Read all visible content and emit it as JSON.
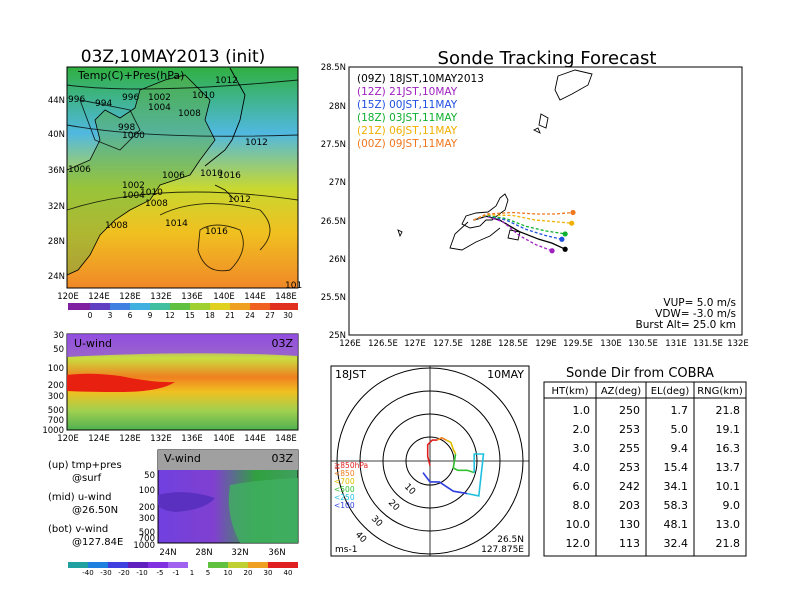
{
  "map_panel": {
    "title": "03Z,10MAY2013 (init)",
    "label": "Temp(C)+Pres(hPa)",
    "lat_labels": [
      "44N",
      "40N",
      "36N",
      "32N",
      "28N",
      "24N"
    ],
    "lon_labels": [
      "120E",
      "124E",
      "128E",
      "132E",
      "136E",
      "140E",
      "144E",
      "148E"
    ],
    "pressure_labels": [
      "996",
      "994",
      "996",
      "1002",
      "1012",
      "1004",
      "1008",
      "1010",
      "998",
      "1000",
      "1012",
      "1006",
      "1002",
      "1004",
      "1006",
      "1010",
      "1008",
      "1010",
      "1012",
      "1008",
      "1014",
      "1016",
      "1016",
      "101"
    ],
    "colorbar": [
      "0",
      "3",
      "6",
      "9",
      "12",
      "15",
      "18",
      "21",
      "24",
      "27",
      "30"
    ]
  },
  "u_panel": {
    "label": "U-wind",
    "time": "03Z",
    "levels": [
      "30",
      "50",
      "100",
      "200",
      "300",
      "500",
      "700",
      "1000"
    ],
    "lon_labels": [
      "120E",
      "124E",
      "128E",
      "132E",
      "136E",
      "140E",
      "144E",
      "148E"
    ]
  },
  "v_panel": {
    "label": "V-wind",
    "time": "03Z",
    "levels": [
      "50",
      "100",
      "200",
      "300",
      "500",
      "700",
      "1000"
    ],
    "lat_labels": [
      "24N",
      "28N",
      "32N",
      "36N"
    ],
    "colorbar": [
      "-40",
      "-30",
      "-20",
      "-10",
      "-5",
      "-1",
      "1",
      "5",
      "10",
      "20",
      "30",
      "40"
    ]
  },
  "legend_notes": {
    "up": "(up) tmp+pres",
    "up2": "@surf",
    "mid": "(mid) u-wind",
    "mid2": "@26.50N",
    "bot": "(bot) v-wind",
    "bot2": "@127.84E"
  },
  "tracking": {
    "title": "Sonde Tracking Forecast",
    "lat_labels": [
      "28.5N",
      "28N",
      "27.5N",
      "27N",
      "26.5N",
      "26N",
      "25.5N",
      "25N"
    ],
    "lon_labels": [
      "126E",
      "126.5E",
      "127E",
      "127.5E",
      "128E",
      "128.5E",
      "129E",
      "129.5E",
      "130E",
      "130.5E",
      "131E",
      "131.5E",
      "132E"
    ],
    "legend": [
      {
        "text": "(09Z) 18JST,10MAY2013",
        "color": "#000000"
      },
      {
        "text": "(12Z) 21JST,10MAY",
        "color": "#a020c0"
      },
      {
        "text": "(15Z) 00JST,11MAY",
        "color": "#2050e0"
      },
      {
        "text": "(18Z) 03JST,11MAY",
        "color": "#10b030"
      },
      {
        "text": "(21Z) 06JST,11MAY",
        "color": "#f0b000"
      },
      {
        "text": "(00Z) 09JST,11MAY",
        "color": "#f07820"
      }
    ],
    "params": {
      "vup": "VUP= 5.0 m/s",
      "vdw": "VDW= -3.0 m/s",
      "burst": "Burst Alt= 25.0 km"
    }
  },
  "hodograph": {
    "time": "18JST",
    "date": "10MAY",
    "ring_labels": [
      "10",
      "20",
      "30",
      "40"
    ],
    "levels": [
      {
        "text": "≧850hPa",
        "color": "#e02020"
      },
      {
        "text": "<850",
        "color": "#f08020"
      },
      {
        "text": "<700",
        "color": "#e0c000"
      },
      {
        "text": "<500",
        "color": "#30c030"
      },
      {
        "text": "<250",
        "color": "#20c0e0"
      },
      {
        "text": "<100",
        "color": "#3040e0"
      }
    ],
    "unit": "ms-1",
    "lat": "26.5N",
    "lon": "127.875E"
  },
  "table": {
    "title": "Sonde Dir from COBRA",
    "headers": [
      "HT(km)",
      "AZ(deg)",
      "EL(deg)",
      "RNG(km)"
    ],
    "rows": [
      [
        "1.0",
        "250",
        "1.7",
        "21.8"
      ],
      [
        "2.0",
        "253",
        "5.0",
        "19.1"
      ],
      [
        "3.0",
        "255",
        "9.4",
        "16.3"
      ],
      [
        "4.0",
        "253",
        "15.4",
        "13.7"
      ],
      [
        "6.0",
        "242",
        "34.1",
        "10.1"
      ],
      [
        "8.0",
        "203",
        "58.3",
        "9.0"
      ],
      [
        "10.0",
        "130",
        "48.1",
        "13.0"
      ],
      [
        "12.0",
        "113",
        "32.4",
        "21.8"
      ]
    ]
  },
  "chart_data": [
    {
      "type": "table",
      "title": "Sonde Dir from COBRA",
      "columns": [
        "HT(km)",
        "AZ(deg)",
        "EL(deg)",
        "RNG(km)"
      ],
      "rows": [
        [
          1.0,
          250,
          1.7,
          21.8
        ],
        [
          2.0,
          253,
          5.0,
          19.1
        ],
        [
          3.0,
          255,
          9.4,
          16.3
        ],
        [
          4.0,
          253,
          15.4,
          13.7
        ],
        [
          6.0,
          242,
          34.1,
          10.1
        ],
        [
          8.0,
          203,
          58.3,
          9.0
        ],
        [
          10.0,
          130,
          48.1,
          13.0
        ],
        [
          12.0,
          113,
          32.4,
          21.8
        ]
      ]
    },
    {
      "type": "line",
      "title": "Sonde Tracking Forecast",
      "xlim": [
        126,
        132
      ],
      "ylim": [
        25,
        28.5
      ],
      "series": [
        {
          "name": "(09Z) 18JST,10MAY2013",
          "color": "#000000",
          "x": [
            127.9,
            128.1,
            128.3,
            128.6,
            128.9,
            129.1,
            129.3
          ],
          "y": [
            26.5,
            26.55,
            26.5,
            26.35,
            26.25,
            26.2,
            26.12
          ]
        },
        {
          "name": "(12Z) 21JST,10MAY",
          "color": "#a020c0",
          "x": [
            127.9,
            128.1,
            128.35,
            128.6,
            128.85,
            129.1
          ],
          "y": [
            26.5,
            26.55,
            26.48,
            26.3,
            26.18,
            26.1
          ]
        },
        {
          "name": "(15Z) 00JST,11MAY",
          "color": "#2050e0",
          "x": [
            127.9,
            128.1,
            128.4,
            128.7,
            129.0,
            129.25
          ],
          "y": [
            26.5,
            26.56,
            26.5,
            26.38,
            26.3,
            26.25
          ]
        },
        {
          "name": "(18Z) 03JST,11MAY",
          "color": "#10b030",
          "x": [
            127.9,
            128.1,
            128.4,
            128.7,
            129.0,
            129.3
          ],
          "y": [
            26.5,
            26.56,
            26.52,
            26.42,
            26.36,
            26.32
          ]
        },
        {
          "name": "(21Z) 06JST,11MAY",
          "color": "#f0b000",
          "x": [
            127.9,
            128.1,
            128.5,
            128.85,
            129.15,
            129.4
          ],
          "y": [
            26.5,
            26.57,
            26.56,
            26.5,
            26.48,
            26.46
          ]
        },
        {
          "name": "(00Z) 09JST,11MAY",
          "color": "#f07820",
          "x": [
            127.9,
            128.1,
            128.5,
            128.85,
            129.15,
            129.42
          ],
          "y": [
            26.5,
            26.58,
            26.6,
            26.58,
            26.58,
            26.6
          ]
        }
      ]
    },
    {
      "type": "line",
      "title": "Hodograph",
      "xlim": [
        -40,
        40
      ],
      "ylim": [
        -40,
        40
      ],
      "series": [
        {
          "name": "≧850hPa",
          "color": "#e02020",
          "x": [
            0,
            -1,
            -1,
            1,
            3
          ],
          "y": [
            -2,
            2,
            7,
            9,
            9
          ]
        },
        {
          "name": "<850",
          "color": "#f08020",
          "x": [
            3,
            5,
            7
          ],
          "y": [
            9,
            10,
            9
          ]
        },
        {
          "name": "<700",
          "color": "#e0c000",
          "x": [
            7,
            9,
            10,
            11
          ],
          "y": [
            9,
            8,
            5,
            3
          ]
        },
        {
          "name": "<500",
          "color": "#30c030",
          "x": [
            11,
            10,
            12,
            16,
            19
          ],
          "y": [
            3,
            -3,
            -4,
            -4,
            -5
          ]
        },
        {
          "name": "<250",
          "color": "#20c0e0",
          "x": [
            19,
            19,
            23,
            21,
            16
          ],
          "y": [
            -5,
            3,
            3,
            -15,
            -14
          ]
        },
        {
          "name": "<100",
          "color": "#3040e0",
          "x": [
            16,
            10,
            4,
            0,
            -3
          ],
          "y": [
            -14,
            -13,
            -9,
            -9,
            -5
          ]
        }
      ]
    }
  ]
}
